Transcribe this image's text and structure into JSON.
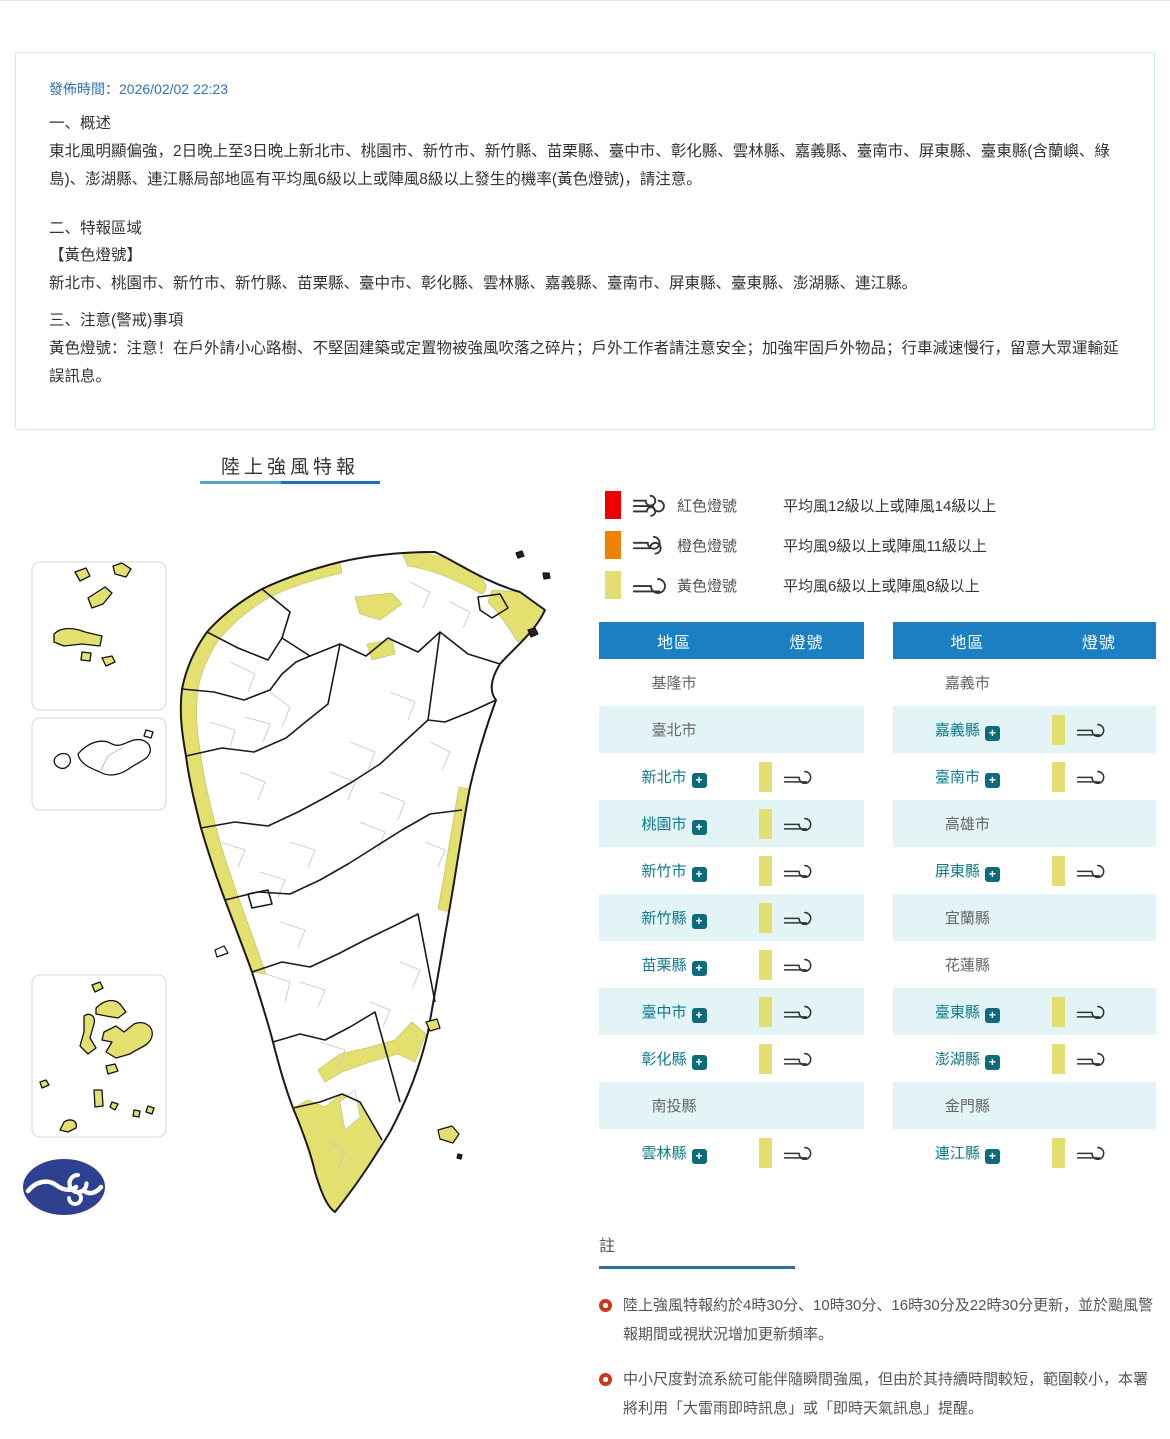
{
  "page": {
    "publish_time": "發佈時間：2026/02/02 22:23",
    "section1_title": "一、概述",
    "section1_body": "東北風明顯偏強，2日晚上至3日晚上新北市、桃園市、新竹市、新竹縣、苗栗縣、臺中市、彰化縣、雲林縣、嘉義縣、臺南市、屏東縣、臺東縣(含蘭嶼、綠島)、澎湖縣、連江縣局部地區有平均風6級以上或陣風8級以上發生的機率(黃色燈號)，請注意。",
    "section2_title": "二、特報區域",
    "section2_sub": "【黃色燈號】",
    "section2_body": "新北市、桃園市、新竹市、新竹縣、苗栗縣、臺中市、彰化縣、雲林縣、嘉義縣、臺南市、屏東縣、臺東縣、澎湖縣、連江縣。",
    "section3_title": "三、注意(警戒)事項",
    "section3_body": "黃色燈號：注意！在戶外請小心路樹、不堅固建築或定置物被強風吹落之碎片；戶外工作者請注意安全；加強牢固戶外物品；行車減速慢行，留意大眾運輸延誤訊息。"
  },
  "map": {
    "title": "陸上強風特報"
  },
  "legend": {
    "items": [
      {
        "name": "紅色燈號",
        "desc": "平均風12級以上或陣風14級以上",
        "color": "#ee0000",
        "icon": "wind-strong-icon",
        "sym": "wind-strong"
      },
      {
        "name": "橙色燈號",
        "desc": "平均風9級以上或陣風11級以上",
        "color": "#f18101",
        "icon": "wind-medium-icon",
        "sym": "wind-medium"
      },
      {
        "name": "黃色燈號",
        "desc": "平均風6級以上或陣風8級以上",
        "color": "#e2df70",
        "icon": "wind-light-icon",
        "sym": "wind-light"
      }
    ]
  },
  "tables": {
    "headers": {
      "region": "地區",
      "signal": "燈號"
    },
    "left_rows": [
      {
        "name": "基隆市",
        "expandable": false,
        "signal": null
      },
      {
        "name": "臺北市",
        "expandable": false,
        "signal": null
      },
      {
        "name": "新北市",
        "expandable": true,
        "signal": "yellow"
      },
      {
        "name": "桃園市",
        "expandable": true,
        "signal": "yellow"
      },
      {
        "name": "新竹市",
        "expandable": true,
        "signal": "yellow"
      },
      {
        "name": "新竹縣",
        "expandable": true,
        "signal": "yellow"
      },
      {
        "name": "苗栗縣",
        "expandable": true,
        "signal": "yellow"
      },
      {
        "name": "臺中市",
        "expandable": true,
        "signal": "yellow"
      },
      {
        "name": "彰化縣",
        "expandable": true,
        "signal": "yellow"
      },
      {
        "name": "南投縣",
        "expandable": false,
        "signal": null
      },
      {
        "name": "雲林縣",
        "expandable": true,
        "signal": "yellow"
      }
    ],
    "right_rows": [
      {
        "name": "嘉義市",
        "expandable": false,
        "signal": null
      },
      {
        "name": "嘉義縣",
        "expandable": true,
        "signal": "yellow"
      },
      {
        "name": "臺南市",
        "expandable": true,
        "signal": "yellow"
      },
      {
        "name": "高雄市",
        "expandable": false,
        "signal": null
      },
      {
        "name": "屏東縣",
        "expandable": true,
        "signal": "yellow"
      },
      {
        "name": "宜蘭縣",
        "expandable": false,
        "signal": null
      },
      {
        "name": "花蓮縣",
        "expandable": false,
        "signal": null
      },
      {
        "name": "臺東縣",
        "expandable": true,
        "signal": "yellow"
      },
      {
        "name": "澎湖縣",
        "expandable": true,
        "signal": "yellow"
      },
      {
        "name": "金門縣",
        "expandable": false,
        "signal": null
      },
      {
        "name": "連江縣",
        "expandable": true,
        "signal": "yellow"
      }
    ],
    "plus_glyph": "+"
  },
  "notes": {
    "title": "註",
    "items": [
      "陸上強風特報約於4時30分、10時30分、16時30分及22時30分更新，並於颱風警報期間或視狀況增加更新頻率。",
      "中小尺度對流系統可能伴隨瞬間強風，但由於其持續時間較短，範圍較小，本署將利用「大雷雨即時訊息」或「即時天氣訊息」提醒。"
    ]
  },
  "colors": {
    "header_blue": "#1b7fc4",
    "row_alt": "#e3f4f7",
    "teal": "#0e7b8c",
    "teal_dark": "#0d6b7c",
    "yellow": "#e2df70",
    "map_yellow": "#e3e06f",
    "red": "#ee0000",
    "orange": "#f18101",
    "underline_blue": "#2d6da3",
    "publish_blue": "#3173b3",
    "bullet_red": "#cf3517",
    "box_border": "#cfe8f8",
    "logo_navy": "#2e4191"
  }
}
